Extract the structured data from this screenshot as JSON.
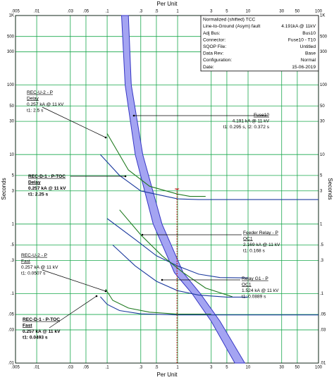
{
  "chart_data": {
    "type": "line",
    "xlabel": "Per Unit",
    "ylabel": "Seconds",
    "xscale": "log",
    "yscale": "log",
    "grid": true,
    "grid_color": "#19a84c",
    "xlim": [
      0.005,
      100
    ],
    "ylim": [
      0.01,
      1000
    ],
    "xticks": [
      {
        "value": 0.005,
        "label": ".005"
      },
      {
        "value": 0.01,
        "label": ".01"
      },
      {
        "value": 0.03,
        "label": ".03"
      },
      {
        "value": 0.05,
        "label": ".05"
      },
      {
        "value": 0.1,
        "label": ".1"
      },
      {
        "value": 0.3,
        "label": ".3"
      },
      {
        "value": 0.5,
        "label": ".5"
      },
      1,
      3,
      5,
      10,
      30,
      50,
      100
    ],
    "yticks": [
      {
        "value": 0.01,
        "label": ".01"
      },
      {
        "value": 0.03,
        "label": ".03"
      },
      {
        "value": 0.05,
        "label": ".05"
      },
      {
        "value": 0.1,
        "label": ".1"
      },
      {
        "value": 0.3,
        "label": ".3"
      },
      {
        "value": 0.5,
        "label": ".5"
      },
      1,
      3,
      5,
      10,
      30,
      50,
      100,
      300,
      500,
      {
        "value": 1000,
        "label": "1K"
      }
    ],
    "series": [
      {
        "name": "Fuse10",
        "color": "#3636c4",
        "fill": "#a4a4f2",
        "x": [
          0.16,
          0.18,
          0.25,
          0.45,
          0.9,
          1.6,
          3,
          6.5
        ],
        "values": [
          1000,
          100,
          10,
          1,
          0.2,
          0.1,
          0.04,
          0.01
        ],
        "x_max": [
          0.2,
          0.22,
          0.32,
          0.6,
          1.2,
          2.1,
          4,
          9
        ],
        "values_max": [
          1000,
          100,
          10,
          1,
          0.2,
          0.1,
          0.04,
          0.01
        ]
      },
      {
        "color": "#1f7a1f",
        "x": [
          0.1,
          0.2,
          0.4,
          1,
          1.5,
          2.5
        ],
        "values": [
          20,
          6,
          3.5,
          2.7,
          2.5,
          2.5
        ]
      },
      {
        "color": "#1c3a9e",
        "x": [
          0.08,
          0.15,
          0.3,
          1,
          2,
          100
        ],
        "values": [
          10,
          5,
          3,
          2.3,
          2.25,
          2.25
        ]
      },
      {
        "color": "#1c3a9e",
        "x": [
          0.1,
          0.25,
          0.5,
          1,
          2,
          4,
          10
        ],
        "values": [
          1.2,
          0.6,
          0.35,
          0.25,
          0.19,
          0.17,
          0.168
        ]
      },
      {
        "color": "#1f7a1f",
        "x": [
          0.15,
          0.3,
          0.6,
          1.2,
          2.5,
          6
        ],
        "values": [
          1.6,
          0.7,
          0.35,
          0.2,
          0.12,
          0.09
        ]
      },
      {
        "color": "#1c3a9e",
        "x": [
          0.12,
          0.25,
          0.5,
          1,
          2,
          5,
          10
        ],
        "values": [
          0.5,
          0.25,
          0.15,
          0.11,
          0.095,
          0.0889,
          0.0889
        ]
      },
      {
        "color": "#1f7a1f",
        "x": [
          0.095,
          0.12,
          0.2,
          0.4,
          1,
          3
        ],
        "values": [
          0.116,
          0.08,
          0.062,
          0.054,
          0.0507,
          0.0507
        ]
      },
      {
        "color": "#1c3a9e",
        "x": [
          0.08,
          0.1,
          0.15,
          0.3,
          1,
          100
        ],
        "values": [
          0.09,
          0.07,
          0.057,
          0.051,
          0.0493,
          0.0493
        ]
      }
    ],
    "fault_marker": {
      "x": 0.98,
      "ylim": [
        0.01,
        3.2
      ],
      "color": "#c00000"
    },
    "info": {
      "title": "Normalized (shifted) TCC",
      "rows": [
        [
          "Line-to-Ground (Asym) fault",
          "4.191kA @ 11kV"
        ],
        [
          "Adj Bus:",
          "Bus10"
        ],
        [
          "Connector:",
          "Fuse10 - T10"
        ],
        [
          "SQOP File:",
          "Untitled"
        ],
        [
          "Data Rev:",
          "Base"
        ],
        [
          "Configuration:",
          "Normal"
        ],
        [
          "Date:",
          "15-06-2019"
        ]
      ]
    },
    "annotations": [
      {
        "lines": [
          "REC-U-2 - P",
          "Delay",
          "0.257 kA @ 11 kV",
          "t1: 2.5 s"
        ]
      },
      {
        "lines": [
          "REC-D-1 - P-TOC",
          "Delay",
          "0.257 kA @ 11 kV",
          "t1: 2.25 s"
        ],
        "bold": true
      },
      {
        "lines": [
          "Fuse10",
          "4.191 kA @ 11 kV",
          "t1: 0.295 s, t2: 0.372 s"
        ]
      },
      {
        "lines": [
          "Feeder Relay - P",
          "OC1",
          "2.169 kA @ 11 kV",
          "t1: 0.168 s"
        ]
      },
      {
        "lines": [
          "REC-U-2 - P",
          "Fast",
          "0.257 kA @ 11 kV",
          "t1: 0.0507 s"
        ]
      },
      {
        "lines": [
          "Relay G1 - P",
          "OC1",
          "1.524 kA @ 11 kV",
          "t1: 0.0889 s"
        ]
      },
      {
        "lines": [
          "REC-D-1 - P-TOC",
          "Fast",
          "0.257 kA @ 11 kV",
          "t1: 0.0493 s"
        ],
        "bold": true
      }
    ]
  }
}
